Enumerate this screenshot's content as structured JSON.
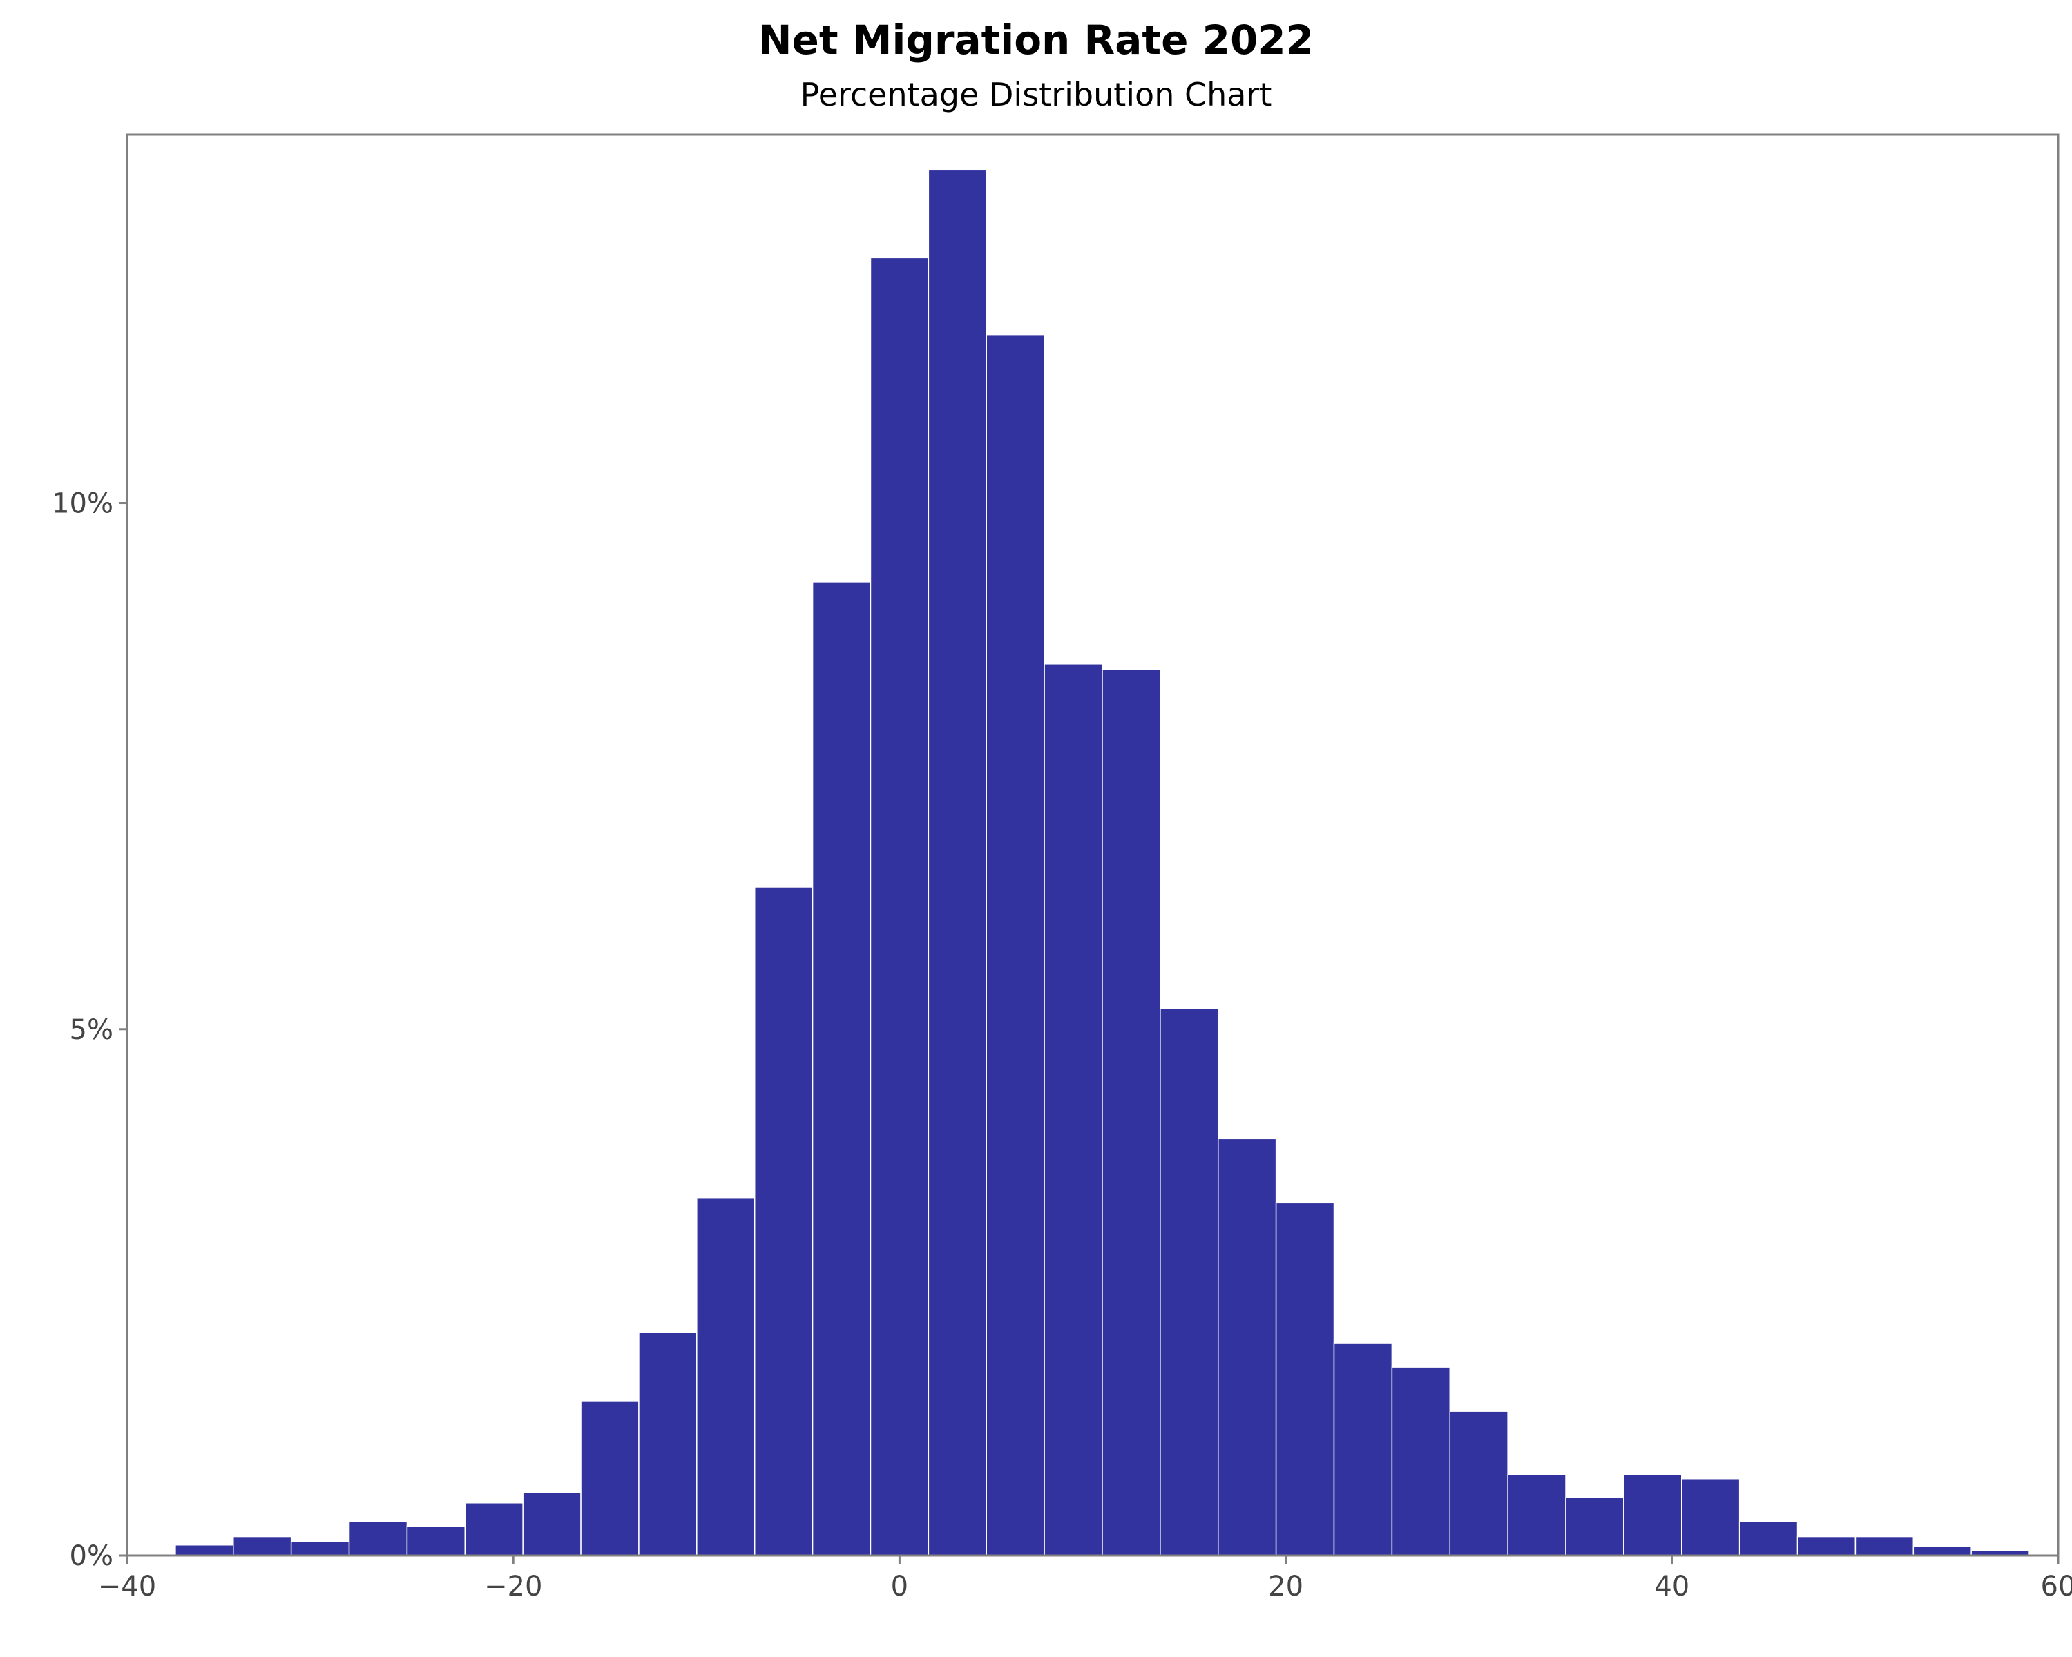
{
  "chart_data": {
    "type": "bar",
    "title": "Net Migration Rate 2022",
    "subtitle": "Percentage Distribution Chart",
    "xlabel": "",
    "ylabel": "",
    "xlim": [
      -40,
      60
    ],
    "ylim": [
      0,
      13.5
    ],
    "bin_width": 3,
    "bins": [
      {
        "x0": -37.5,
        "x1": -34.5,
        "value": 0.1
      },
      {
        "x0": -34.5,
        "x1": -31.5,
        "value": 0.18
      },
      {
        "x0": -31.5,
        "x1": -28.5,
        "value": 0.13
      },
      {
        "x0": -28.5,
        "x1": -25.5,
        "value": 0.32
      },
      {
        "x0": -25.5,
        "x1": -22.5,
        "value": 0.28
      },
      {
        "x0": -22.5,
        "x1": -19.5,
        "value": 0.5
      },
      {
        "x0": -19.5,
        "x1": -16.5,
        "value": 0.6
      },
      {
        "x0": -16.5,
        "x1": -13.5,
        "value": 1.47
      },
      {
        "x0": -13.5,
        "x1": -10.5,
        "value": 2.12
      },
      {
        "x0": -10.5,
        "x1": -7.5,
        "value": 3.4
      },
      {
        "x0": -7.5,
        "x1": -4.5,
        "value": 6.35
      },
      {
        "x0": -4.5,
        "x1": -1.5,
        "value": 9.25
      },
      {
        "x0": -1.5,
        "x1": 1.5,
        "value": 12.33
      },
      {
        "x0": 1.5,
        "x1": 4.5,
        "value": 13.17
      },
      {
        "x0": 4.5,
        "x1": 7.5,
        "value": 11.6
      },
      {
        "x0": 7.5,
        "x1": 10.5,
        "value": 8.47
      },
      {
        "x0": 10.5,
        "x1": 13.5,
        "value": 8.42
      },
      {
        "x0": 13.5,
        "x1": 16.5,
        "value": 5.2
      },
      {
        "x0": 16.5,
        "x1": 19.5,
        "value": 3.96
      },
      {
        "x0": 19.5,
        "x1": 22.5,
        "value": 3.35
      },
      {
        "x0": 22.5,
        "x1": 25.5,
        "value": 2.02
      },
      {
        "x0": 25.5,
        "x1": 28.5,
        "value": 1.79
      },
      {
        "x0": 28.5,
        "x1": 31.5,
        "value": 1.37
      },
      {
        "x0": 31.5,
        "x1": 34.5,
        "value": 0.77
      },
      {
        "x0": 34.5,
        "x1": 37.5,
        "value": 0.55
      },
      {
        "x0": 37.5,
        "x1": 40.5,
        "value": 0.77
      },
      {
        "x0": 40.5,
        "x1": 43.5,
        "value": 0.73
      },
      {
        "x0": 43.5,
        "x1": 46.5,
        "value": 0.32
      },
      {
        "x0": 46.5,
        "x1": 49.5,
        "value": 0.18
      },
      {
        "x0": 49.5,
        "x1": 52.5,
        "value": 0.18
      },
      {
        "x0": 52.5,
        "x1": 55.5,
        "value": 0.09
      },
      {
        "x0": 55.5,
        "x1": 58.5,
        "value": 0.05
      }
    ],
    "x_ticks": [
      {
        "value": -40,
        "label": "−40"
      },
      {
        "value": -20,
        "label": "−20"
      },
      {
        "value": 0,
        "label": "0"
      },
      {
        "value": 20,
        "label": "20"
      },
      {
        "value": 40,
        "label": "40"
      },
      {
        "value": 60,
        "label": "60"
      }
    ],
    "y_ticks": [
      {
        "value": 0,
        "label": "0%"
      },
      {
        "value": 5,
        "label": "5%"
      },
      {
        "value": 10,
        "label": "10%"
      }
    ],
    "grid": false,
    "legend": "none",
    "colors": {
      "bar_fill": "#3333a0",
      "bar_edge": "#ffffff",
      "frame": "#808080",
      "tick_text": "#444444"
    }
  }
}
